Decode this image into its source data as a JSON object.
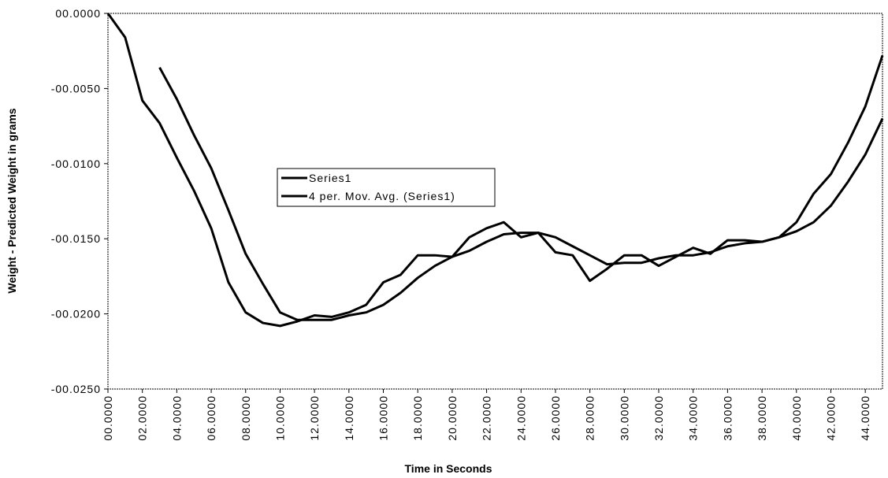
{
  "chart_data": {
    "type": "line",
    "x_label": "Time in Seconds",
    "y_label": "Weight  -  Predicted  Weight  in  grams",
    "x": [
      0,
      1,
      2,
      3,
      4,
      5,
      6,
      7,
      8,
      9,
      10,
      11,
      12,
      13,
      14,
      15,
      16,
      17,
      18,
      19,
      20,
      21,
      22,
      23,
      24,
      25,
      26,
      27,
      28,
      29,
      30,
      31,
      32,
      33,
      34,
      35,
      36,
      37,
      38,
      39,
      40,
      41,
      42,
      43,
      44,
      45
    ],
    "series": [
      {
        "name": "Series1",
        "color": "#000000",
        "values": [
          0,
          -0.0016,
          -0.0058,
          -0.0073,
          -0.0096,
          -0.0118,
          -0.0143,
          -0.0179,
          -0.0199,
          -0.0206,
          -0.0208,
          -0.0205,
          -0.0201,
          -0.0202,
          -0.0199,
          -0.0194,
          -0.0179,
          -0.0174,
          -0.0161,
          -0.0161,
          -0.0162,
          -0.0149,
          -0.0143,
          -0.0139,
          -0.0149,
          -0.0146,
          -0.0159,
          -0.0161,
          -0.0178,
          -0.017,
          -0.0161,
          -0.0161,
          -0.0168,
          -0.0162,
          -0.0156,
          -0.016,
          -0.0151,
          -0.0151,
          -0.0152,
          -0.0149,
          -0.0139,
          -0.012,
          -0.0107,
          -0.0086,
          -0.0062,
          -0.0028
        ]
      },
      {
        "name": "4 per. Mov. Avg. (Series1)",
        "color": "#000000",
        "values": [
          null,
          null,
          null,
          -0.0036,
          -0.0057,
          -0.0081,
          -0.0103,
          -0.0131,
          -0.016,
          -0.018,
          -0.0199,
          -0.0204,
          -0.0204,
          -0.0204,
          -0.0201,
          -0.0199,
          -0.0194,
          -0.0186,
          -0.0176,
          -0.0168,
          -0.0162,
          -0.0158,
          -0.0152,
          -0.0147,
          -0.0146,
          -0.0146,
          -0.0149,
          -0.0155,
          -0.0161,
          -0.0167,
          -0.0166,
          -0.0166,
          -0.0163,
          -0.0161,
          -0.0161,
          -0.0159,
          -0.0155,
          -0.0153,
          -0.0152,
          -0.0149,
          -0.0145,
          -0.0139,
          -0.0128,
          -0.0112,
          -0.0094,
          -0.007
        ]
      }
    ],
    "xlim": [
      0,
      45
    ],
    "xticks": [
      {
        "value": 0,
        "label": "00.0000"
      },
      {
        "value": 2,
        "label": "02.0000"
      },
      {
        "value": 4,
        "label": "04.0000"
      },
      {
        "value": 6,
        "label": "06.0000"
      },
      {
        "value": 8,
        "label": "08.0000"
      },
      {
        "value": 10,
        "label": "10.0000"
      },
      {
        "value": 12,
        "label": "12.0000"
      },
      {
        "value": 14,
        "label": "14.0000"
      },
      {
        "value": 16,
        "label": "16.0000"
      },
      {
        "value": 18,
        "label": "18.0000"
      },
      {
        "value": 20,
        "label": "20.0000"
      },
      {
        "value": 22,
        "label": "22.0000"
      },
      {
        "value": 24,
        "label": "24.0000"
      },
      {
        "value": 26,
        "label": "26.0000"
      },
      {
        "value": 28,
        "label": "28.0000"
      },
      {
        "value": 30,
        "label": "30.0000"
      },
      {
        "value": 32,
        "label": "32.0000"
      },
      {
        "value": 34,
        "label": "34.0000"
      },
      {
        "value": 36,
        "label": "36.0000"
      },
      {
        "value": 38,
        "label": "38.0000"
      },
      {
        "value": 40,
        "label": "40.0000"
      },
      {
        "value": 42,
        "label": "42.0000"
      },
      {
        "value": 44,
        "label": "44.0000"
      }
    ],
    "ylim": [
      -0.025,
      0
    ],
    "yticks": [
      {
        "value": -0.025,
        "label": "-00.0250"
      },
      {
        "value": -0.02,
        "label": "-00.0200"
      },
      {
        "value": -0.015,
        "label": "-00.0150"
      },
      {
        "value": -0.01,
        "label": "-00.0100"
      },
      {
        "value": -0.005,
        "label": "-00.0050"
      },
      {
        "value": 0,
        "label": "00.0000"
      }
    ],
    "grid": false
  }
}
